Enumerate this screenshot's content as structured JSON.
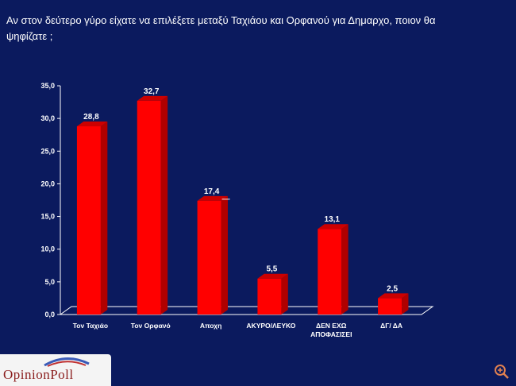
{
  "title": "Αν στον δεύτερο γύρο είχατε να επιλέξετε μεταξύ Ταχιάου και Ορφανού για Δημαρχο, ποιον θα ψηφίζατε ;",
  "logo": {
    "text": "OpinionPoll"
  },
  "zoom": {
    "icon": "zoom-in-icon"
  },
  "colors": {
    "background": "#0b1a5e",
    "bar": "#ff0000",
    "bar_side": "#b00000",
    "bar_top": "#cc0000"
  },
  "chart_data": {
    "type": "bar",
    "title": "Αν στον δεύτερο γύρο είχατε να επιλέξετε μεταξύ Ταχιάου και Ορφανού για Δημαρχο, ποιον θα ψηφίζατε ;",
    "categories": [
      {
        "line1": "Τον Ταχιάο",
        "line2": ""
      },
      {
        "line1": "Τον Ορφανό",
        "line2": ""
      },
      {
        "line1": "Αποχη",
        "line2": ""
      },
      {
        "line1": "ΑΚΥΡΟ/ΛΕΥΚΟ",
        "line2": ""
      },
      {
        "line1": "ΔΕΝ ΕΧΩ",
        "line2": "ΑΠΟΦΑΣΙΣΕΙ"
      },
      {
        "line1": "ΔΓ/ ΔΑ",
        "line2": ""
      }
    ],
    "values": [
      28.8,
      32.7,
      17.4,
      5.5,
      13.1,
      2.5
    ],
    "value_labels": [
      "28,8",
      "32,7",
      "17,4",
      "5,5",
      "13,1",
      "2,5"
    ],
    "yticks": [
      "0,0",
      "5,0",
      "10,0",
      "15,0",
      "20,0",
      "25,0",
      "30,0",
      "35,0"
    ],
    "ylim": [
      0,
      35
    ],
    "xlabel": "",
    "ylabel": "",
    "grid": false,
    "style": "3d"
  }
}
